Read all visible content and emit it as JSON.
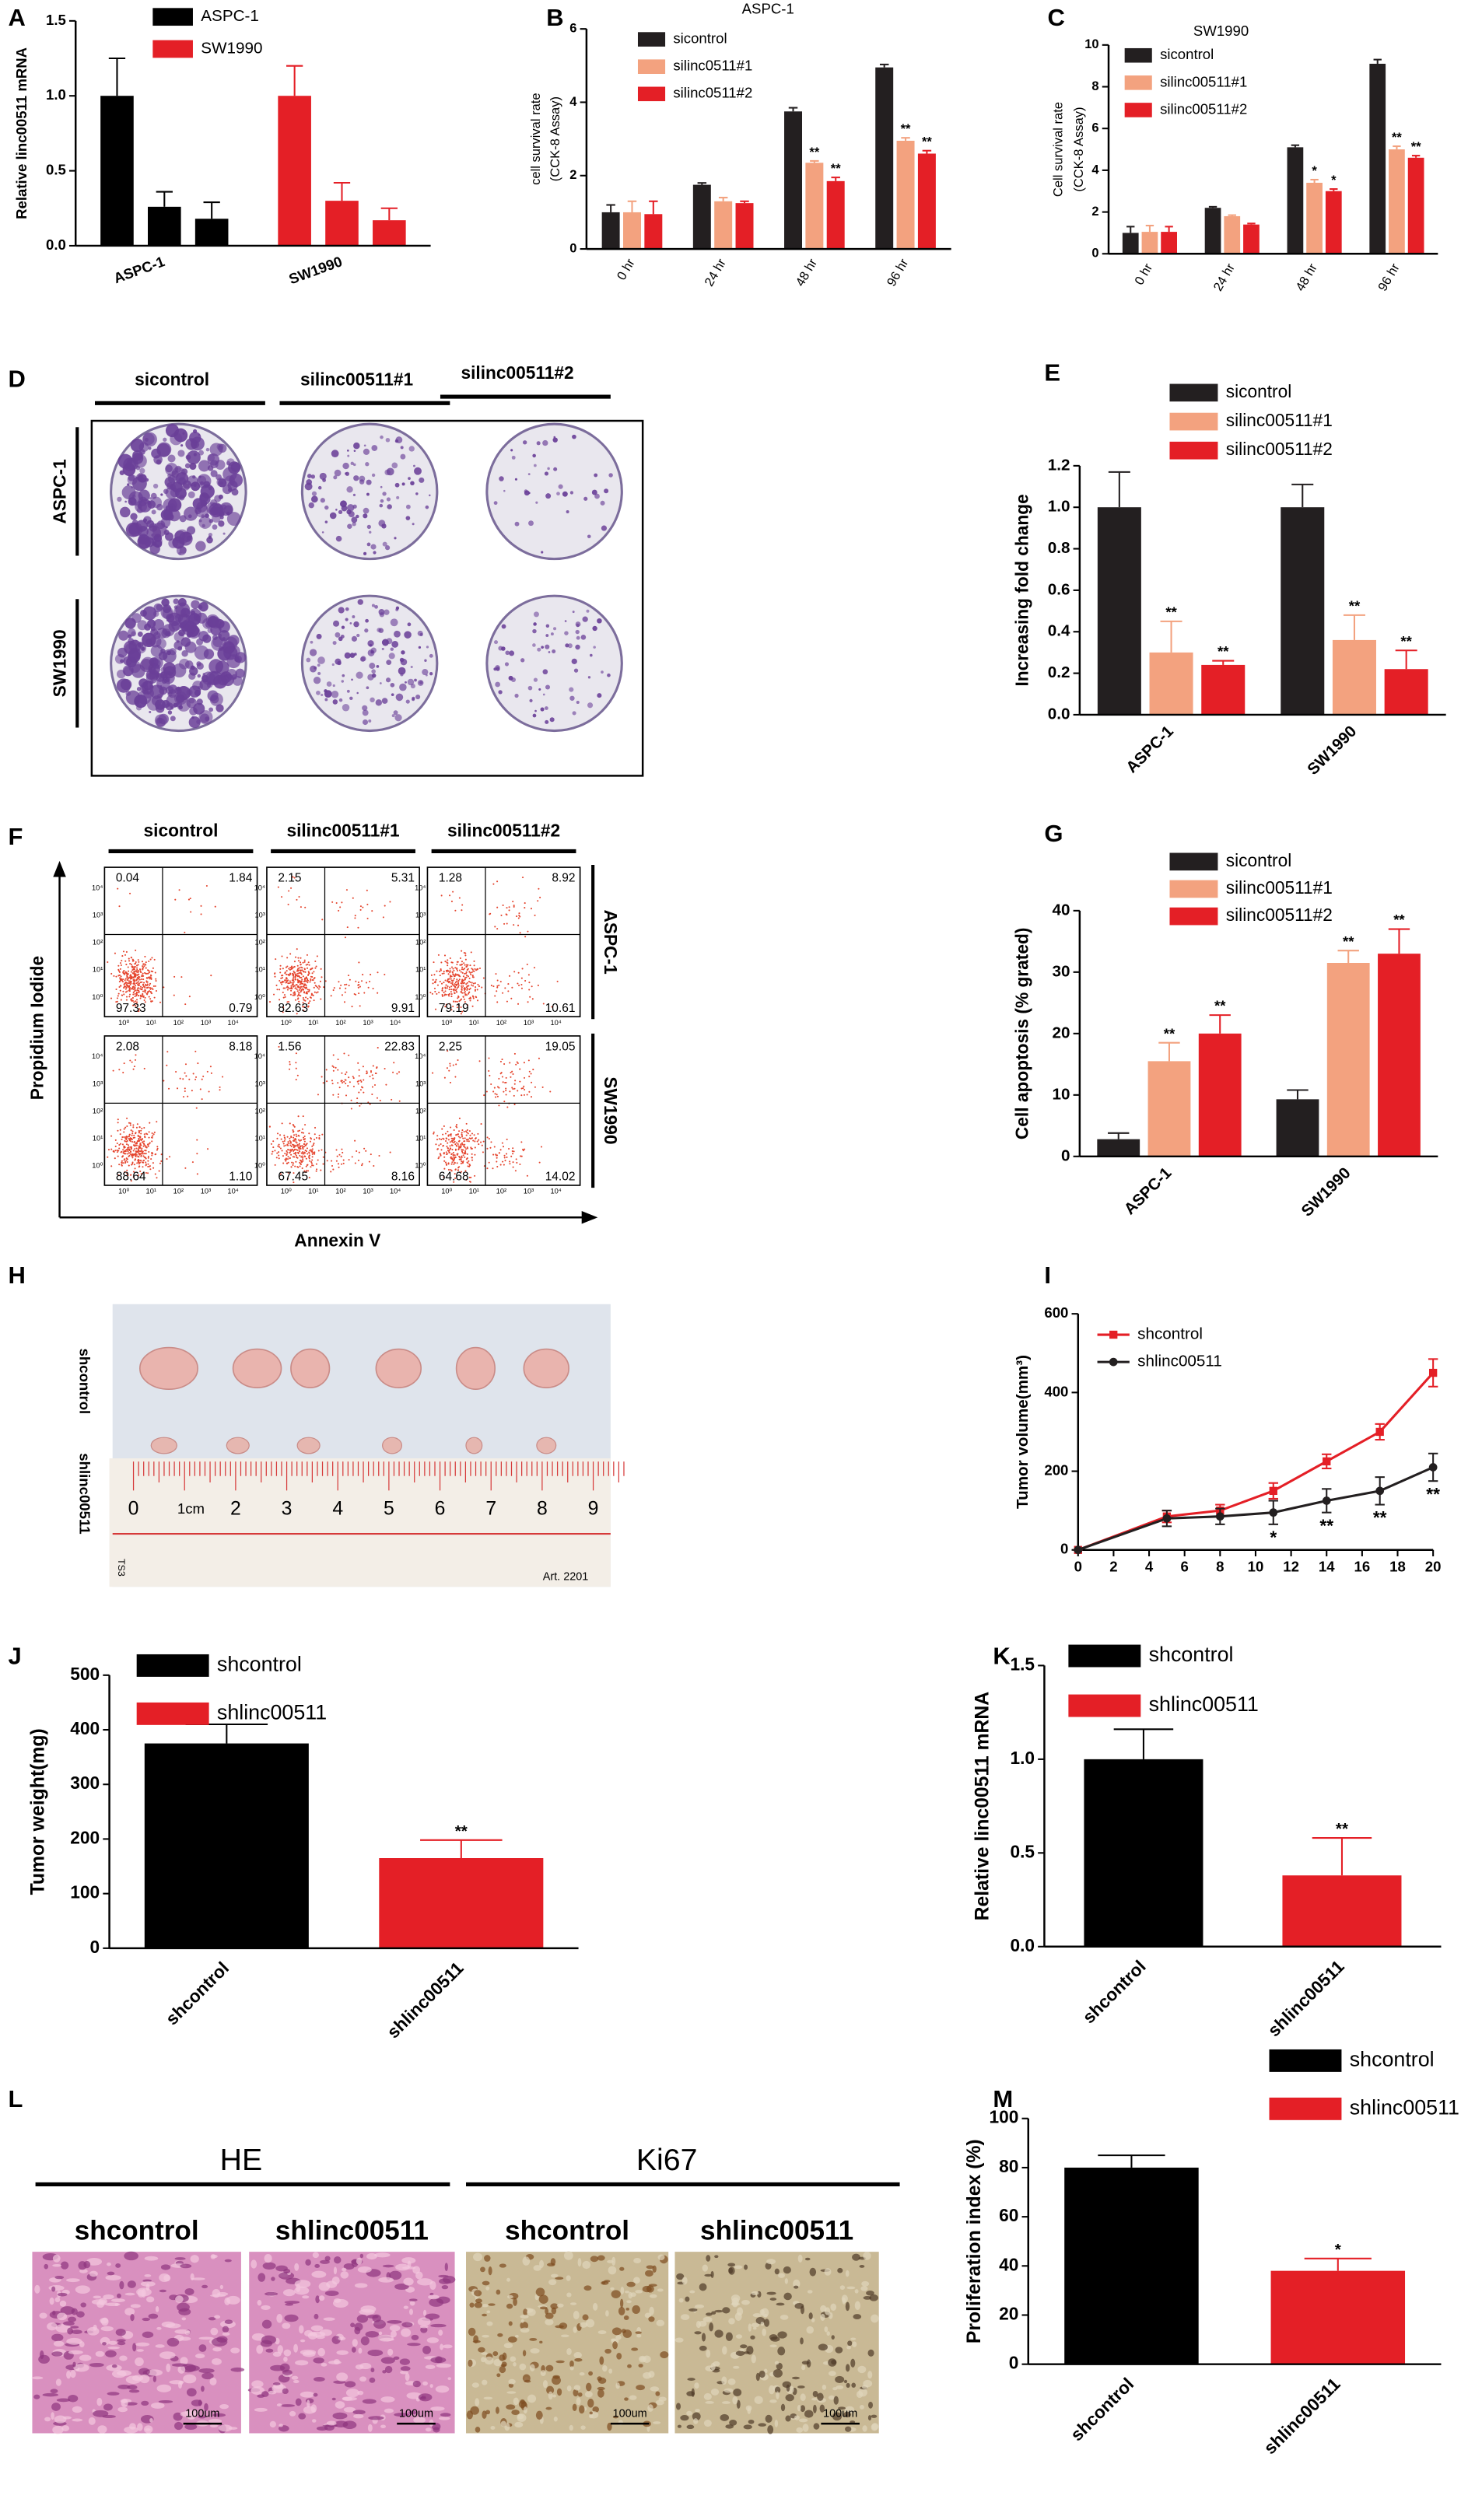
{
  "panel_labels": [
    "A",
    "B",
    "C",
    "D",
    "E",
    "F",
    "G",
    "H",
    "I",
    "J",
    "K",
    "L",
    "M"
  ],
  "chart_data": [
    {
      "type": "bar",
      "ylabel": "Relative linc00511 mRNA",
      "ylim": [
        0,
        1.5
      ],
      "yticks": [
        {
          "value": 0,
          "label": "0.0"
        },
        0.5,
        {
          "value": 1,
          "label": "1.0"
        },
        1.5
      ],
      "series": [
        {
          "name": "ASPC-1",
          "color": "#000000",
          "values": [
            1.0,
            0.26,
            0.18
          ],
          "errors": [
            0.25,
            0.1,
            0.11
          ]
        },
        {
          "name": "SW1990",
          "color": "#e41f26",
          "values": [
            1.0,
            0.3,
            0.17
          ],
          "errors": [
            0.2,
            0.12,
            0.08
          ]
        }
      ]
    },
    {
      "type": "bar",
      "title": "ASPC-1",
      "ylabel": [
        "cell survival rate",
        "(CCK-8 Assay)"
      ],
      "categories": [
        "0 hr",
        "24 hr",
        "48 hr",
        "96 hr"
      ],
      "ylim": [
        0,
        6
      ],
      "yticks": [
        0,
        2,
        4,
        6
      ],
      "series": [
        {
          "name": "sicontrol",
          "color": "#231f20",
          "values": [
            1.0,
            1.75,
            3.75,
            4.95
          ],
          "errors": [
            0.2,
            0.05,
            0.1,
            0.08
          ]
        },
        {
          "name": "silinc0511#1",
          "color": "#f3a27f",
          "values": [
            1.0,
            1.3,
            2.35,
            2.95
          ],
          "errors": [
            0.3,
            0.1,
            0.05,
            0.08
          ],
          "significance": [
            null,
            null,
            "**",
            "**"
          ]
        },
        {
          "name": "silinc0511#2",
          "color": "#e41f26",
          "values": [
            0.95,
            1.25,
            1.85,
            2.6
          ],
          "errors": [
            0.35,
            0.05,
            0.1,
            0.08
          ],
          "significance": [
            null,
            null,
            "**",
            "**"
          ]
        }
      ]
    },
    {
      "type": "bar",
      "title": "SW1990",
      "ylabel": [
        "Cell survival rate",
        "(CCK-8 Assay)"
      ],
      "categories": [
        "0 hr",
        "24 hr",
        "48 hr",
        "96 hr"
      ],
      "ylim": [
        0,
        10
      ],
      "yticks": [
        0,
        2,
        4,
        6,
        8,
        10
      ],
      "series": [
        {
          "name": "sicontrol",
          "color": "#231f20",
          "values": [
            1.0,
            2.2,
            5.1,
            9.1
          ],
          "errors": [
            0.3,
            0.05,
            0.1,
            0.2
          ]
        },
        {
          "name": "silinc00511#1",
          "color": "#f3a27f",
          "values": [
            1.05,
            1.8,
            3.4,
            5.0
          ],
          "errors": [
            0.3,
            0.05,
            0.15,
            0.15
          ],
          "significance": [
            null,
            null,
            "*",
            "**"
          ]
        },
        {
          "name": "silinc00511#2",
          "color": "#e41f26",
          "values": [
            1.05,
            1.4,
            3.0,
            4.6
          ],
          "errors": [
            0.25,
            0.05,
            0.1,
            0.1
          ],
          "significance": [
            null,
            null,
            "*",
            "**"
          ]
        }
      ]
    },
    {
      "type": "bar",
      "ylabel": "Increasing fold change",
      "categories": [
        "ASPC-1",
        "SW1990"
      ],
      "ylim": [
        0,
        1.2
      ],
      "yticks": [
        {
          "value": 0,
          "label": "0.0"
        },
        0.2,
        0.4,
        0.6,
        0.8,
        {
          "value": 1,
          "label": "1.0"
        },
        1.2
      ],
      "series": [
        {
          "name": "sicontrol",
          "color": "#231f20",
          "values": [
            1.0,
            1.0
          ],
          "errors": [
            0.17,
            0.11
          ]
        },
        {
          "name": "silinc00511#1",
          "color": "#f3a27f",
          "values": [
            0.3,
            0.36
          ],
          "errors": [
            0.15,
            0.12
          ],
          "significance": [
            "**",
            "**"
          ]
        },
        {
          "name": "silinc00511#2",
          "color": "#e41f26",
          "values": [
            0.24,
            0.22
          ],
          "errors": [
            0.02,
            0.09
          ],
          "significance": [
            "**",
            "**"
          ]
        }
      ]
    },
    {
      "type": "bar",
      "ylabel": "Cell apoptosis (% grated)",
      "categories": [
        "ASPC-1",
        "SW1990"
      ],
      "ylim": [
        0,
        40
      ],
      "yticks": [
        0,
        10,
        20,
        30,
        40
      ],
      "series": [
        {
          "name": "sicontrol",
          "color": "#231f20",
          "values": [
            2.8,
            9.3
          ],
          "errors": [
            1,
            1.5
          ]
        },
        {
          "name": "silinc00511#1",
          "color": "#f3a27f",
          "values": [
            15.5,
            31.5
          ],
          "errors": [
            3,
            2
          ],
          "significance": [
            "**",
            "**"
          ]
        },
        {
          "name": "silinc00511#2",
          "color": "#e41f26",
          "values": [
            20,
            33
          ],
          "errors": [
            3,
            4
          ],
          "significance": [
            "**",
            "**"
          ]
        }
      ]
    },
    {
      "type": "line",
      "ylabel": "Tumor volume(mm³)",
      "x": [
        0,
        5,
        8,
        11,
        14,
        17,
        20
      ],
      "xlim": [
        0,
        20
      ],
      "xticks": [
        0,
        2,
        4,
        6,
        8,
        10,
        12,
        14,
        16,
        18,
        20
      ],
      "ylim": [
        0,
        600
      ],
      "yticks": [
        0,
        200,
        400,
        600
      ],
      "series": [
        {
          "name": "shcontrol",
          "color": "#e41f26",
          "marker": "square",
          "values": [
            0,
            85,
            100,
            150,
            225,
            300,
            450
          ],
          "errors": [
            0,
            15,
            15,
            20,
            18,
            20,
            35
          ]
        },
        {
          "name": "shlinc00511",
          "color": "#231f20",
          "marker": "circle",
          "values": [
            0,
            80,
            85,
            95,
            125,
            150,
            210
          ],
          "errors": [
            0,
            20,
            20,
            30,
            30,
            35,
            35
          ],
          "significance": [
            null,
            null,
            null,
            "*",
            "**",
            "**",
            "**"
          ]
        }
      ]
    },
    {
      "type": "bar",
      "ylabel": "Tumor weight(mg)",
      "categories": [
        "shcontrol",
        "shlinc00511"
      ],
      "values": [
        375,
        165
      ],
      "errors": [
        35,
        33
      ],
      "colors": [
        "#000000",
        "#e41f26"
      ],
      "significance": [
        null,
        "**"
      ],
      "ylim": [
        0,
        500
      ],
      "yticks": [
        0,
        100,
        200,
        300,
        400,
        500
      ]
    },
    {
      "type": "bar",
      "ylabel": "Relative linc00511 mRNA",
      "categories": [
        "shcontrol",
        "shlinc00511"
      ],
      "values": [
        1.0,
        0.38
      ],
      "errors": [
        0.16,
        0.2
      ],
      "colors": [
        "#000000",
        "#e41f26"
      ],
      "significance": [
        null,
        "**"
      ],
      "ylim": [
        0,
        1.5
      ],
      "yticks": [
        {
          "value": 0,
          "label": "0.0"
        },
        0.5,
        {
          "value": 1,
          "label": "1.0"
        },
        1.5
      ]
    },
    {
      "type": "bar",
      "ylabel": "Proliferation index (%)",
      "categories": [
        "shcontrol",
        "shlinc00511"
      ],
      "values": [
        80,
        38
      ],
      "errors": [
        5,
        5
      ],
      "colors": [
        "#000000",
        "#e41f26"
      ],
      "significance": [
        null,
        "*"
      ],
      "ylim": [
        0,
        100
      ],
      "yticks": [
        0,
        20,
        40,
        60,
        80,
        100
      ]
    }
  ],
  "colony_assay": {
    "columns": [
      "sicontrol",
      "silinc00511#1",
      "silinc00511#2"
    ],
    "rows": [
      "ASPC-1",
      "SW1990"
    ]
  },
  "flow_cytometry": {
    "columns": [
      "sicontrol",
      "silinc00511#1",
      "silinc00511#2"
    ],
    "rows": [
      "ASPC-1",
      "SW1990"
    ],
    "y_axis": "Propidium Iodide",
    "x_axis": "Annexin V",
    "axis_ticks": [
      "10⁰",
      "10¹",
      "10²",
      "10³",
      "10⁴"
    ],
    "quadrants": [
      [
        [
          "0.04",
          "1.84",
          "97.33",
          "0.79"
        ],
        [
          "2.15",
          "5.31",
          "82.63",
          "9.91"
        ],
        [
          "1.28",
          "8.92",
          "79.19",
          "10.61"
        ]
      ],
      [
        [
          "2.08",
          "8.18",
          "88.64",
          "1.10"
        ],
        [
          "1.56",
          "22.83",
          "67.45",
          "8.16"
        ],
        [
          "2.25",
          "19.05",
          "64.68",
          "14.02"
        ]
      ]
    ]
  },
  "tumor_photo": {
    "rows": [
      "shcontrol",
      "shlinc00511"
    ],
    "ruler_labels": [
      "0",
      "1cm",
      "2",
      "3",
      "4",
      "5",
      "6",
      "7",
      "8",
      "9"
    ],
    "ruler_mark": "Art. 2201",
    "ruler_code": "TS3"
  },
  "histology": {
    "groups": [
      "HE",
      "Ki67"
    ],
    "images": [
      "shcontrol",
      "shlinc00511",
      "shcontrol",
      "shlinc00511"
    ],
    "scale_bar": "100um"
  }
}
